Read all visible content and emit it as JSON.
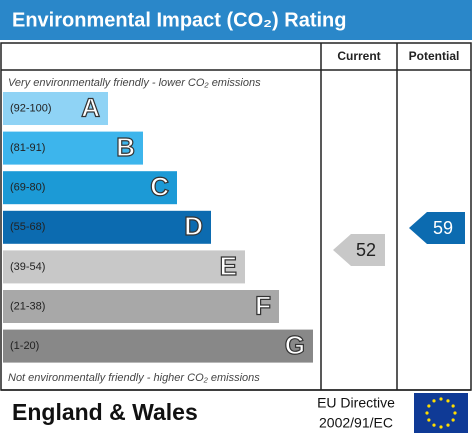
{
  "title": "Environmental Impact (CO₂) Rating",
  "header": {
    "current": "Current",
    "potential": "Potential"
  },
  "top_note": "Very environmentally friendly - lower CO₂ emissions",
  "bands": [
    {
      "range": "(92-100)",
      "letter": "A"
    },
    {
      "range": "(81-91)",
      "letter": "B"
    },
    {
      "range": "(69-80)",
      "letter": "C"
    },
    {
      "range": "(55-68)",
      "letter": "D"
    },
    {
      "range": "(39-54)",
      "letter": "E"
    },
    {
      "range": "(21-38)",
      "letter": "F"
    },
    {
      "range": "(1-20)",
      "letter": "G"
    }
  ],
  "bottom_note": "Not environmentally friendly - higher CO₂ emissions",
  "current": {
    "value": 52
  },
  "potential": {
    "value": 59
  },
  "footer": {
    "region": "England & Wales",
    "directive_line1": "EU Directive",
    "directive_line2": "2002/91/EC"
  }
}
